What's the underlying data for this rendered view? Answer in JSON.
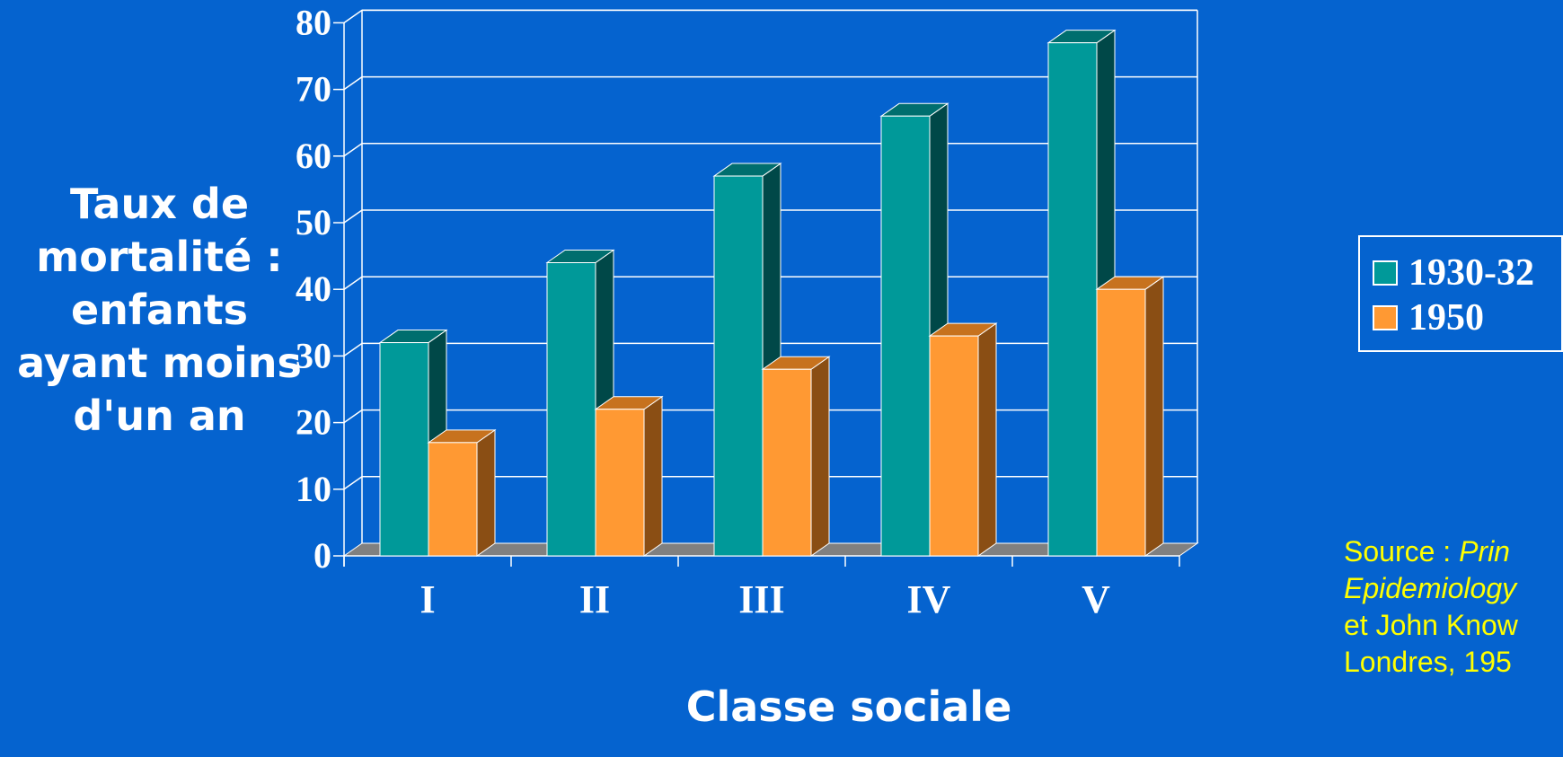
{
  "chart_data": {
    "type": "bar",
    "title": "",
    "ylabel_lines": [
      "Taux de",
      "mortalité :",
      "enfants",
      "ayant moins",
      "d'un an"
    ],
    "xlabel": "Classe sociale",
    "categories": [
      "I",
      "II",
      "III",
      "IV",
      "V"
    ],
    "series": [
      {
        "name": "1930-32",
        "values": [
          32,
          44,
          57,
          66,
          77
        ],
        "color": "#009999"
      },
      {
        "name": "1950",
        "values": [
          17,
          22,
          28,
          33,
          40
        ],
        "color": "#ff9933"
      }
    ],
    "ylim": [
      0,
      80
    ],
    "yticks": [
      0,
      10,
      20,
      30,
      40,
      50,
      60,
      70,
      80
    ],
    "grid": true,
    "legend_position": "right",
    "bar_style": "3d"
  },
  "source": {
    "line1_prefix": "Source : ",
    "line1_italic": "Prin",
    "line2_italic": "Epidemiology",
    "line3": "et John Know",
    "line4": "Londres, 195"
  }
}
